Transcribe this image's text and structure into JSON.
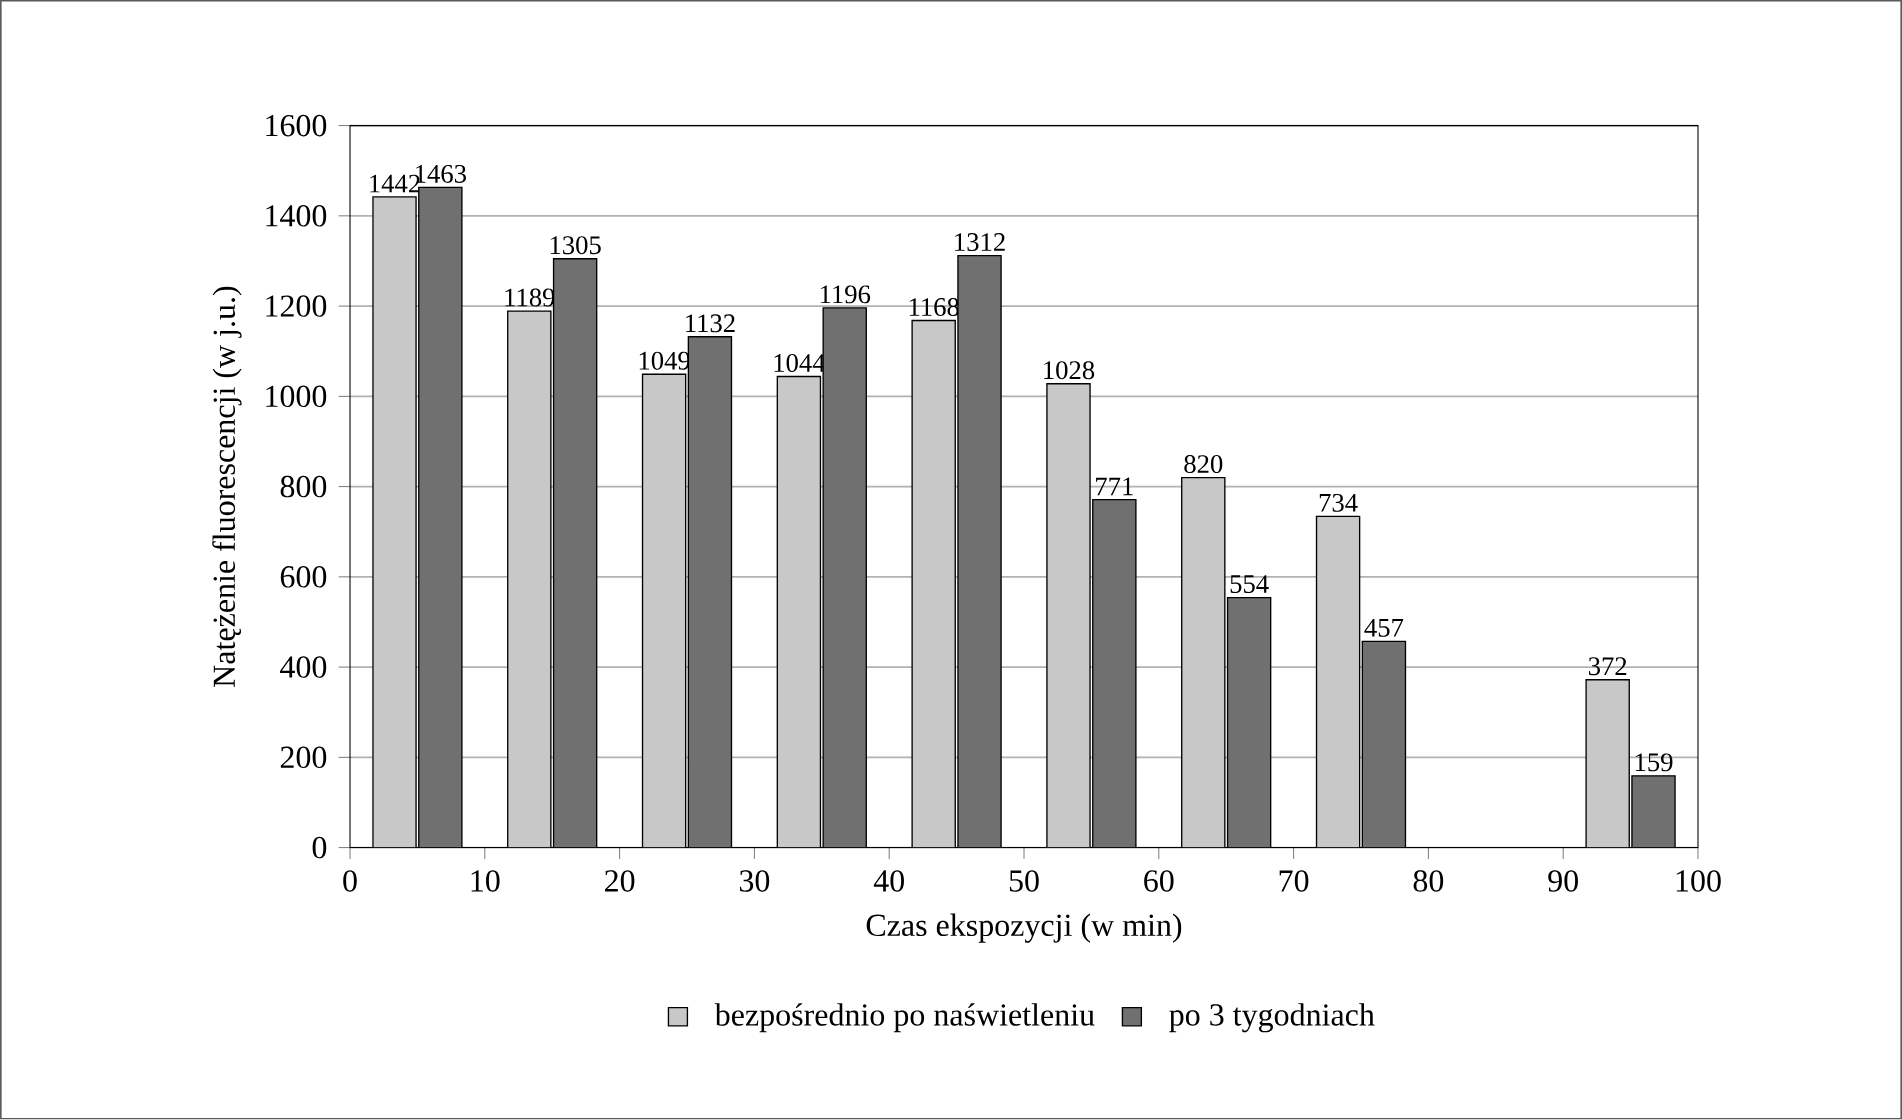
{
  "chart_data": {
    "type": "bar",
    "xlabel": "Czas ekspozycji (w min)",
    "ylabel": "Natężenie fluorescencji (w j.u.)",
    "x": [
      5,
      15,
      25,
      35,
      45,
      55,
      65,
      75,
      95
    ],
    "series": [
      {
        "name": "bezpośrednio po naświetleniu",
        "color": "#c8c8c8",
        "values": [
          1442,
          1189,
          1049,
          1044,
          1168,
          1028,
          820,
          734,
          372
        ]
      },
      {
        "name": "po 3 tygodniach",
        "color": "#707070",
        "values": [
          1463,
          1305,
          1132,
          1196,
          1312,
          771,
          554,
          457,
          159
        ]
      }
    ],
    "xlim": [
      0,
      100
    ],
    "xticks": [
      0,
      10,
      20,
      30,
      40,
      50,
      60,
      70,
      80,
      90,
      100
    ],
    "ylim": [
      0,
      1600
    ],
    "yticks": [
      0,
      200,
      400,
      600,
      800,
      1000,
      1200,
      1400,
      1600
    ],
    "grid": "y",
    "legend": "bottom",
    "data_labels": true
  }
}
